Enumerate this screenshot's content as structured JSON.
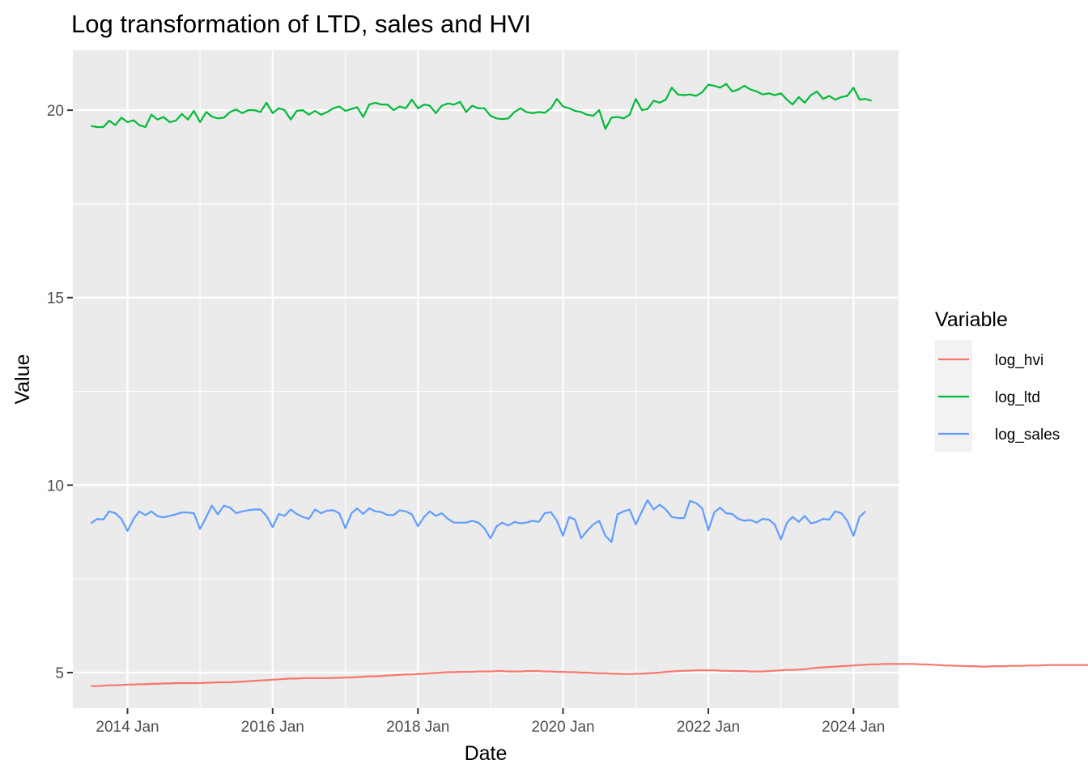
{
  "chart_data": {
    "type": "line",
    "title": "Log transformation of LTD, sales and HVI",
    "xlabel": "Date",
    "ylabel": "Value",
    "x_ticks": [
      "2014 Jan",
      "2016 Jan",
      "2018 Jan",
      "2020 Jan",
      "2022 Jan",
      "2024 Jan"
    ],
    "y_ticks": [
      5,
      10,
      15,
      20
    ],
    "xlim": [
      "2013-04-01",
      "2024-08-15"
    ],
    "ylim": [
      4.05,
      21.6
    ],
    "grid": true,
    "legend": {
      "title": "Variable",
      "position": "right"
    },
    "series": [
      {
        "name": "log_hvi",
        "color": "#F8766D",
        "start": "2013-07",
        "values": [
          4.64,
          4.64,
          4.65,
          4.66,
          4.66,
          4.67,
          4.68,
          4.68,
          4.69,
          4.69,
          4.7,
          4.7,
          4.71,
          4.71,
          4.72,
          4.72,
          4.72,
          4.72,
          4.72,
          4.73,
          4.73,
          4.74,
          4.74,
          4.74,
          4.75,
          4.76,
          4.77,
          4.78,
          4.79,
          4.8,
          4.81,
          4.82,
          4.83,
          4.84,
          4.84,
          4.85,
          4.85,
          4.85,
          4.85,
          4.85,
          4.86,
          4.86,
          4.87,
          4.87,
          4.88,
          4.89,
          4.9,
          4.9,
          4.91,
          4.92,
          4.93,
          4.94,
          4.95,
          4.95,
          4.96,
          4.97,
          4.98,
          4.99,
          5.0,
          5.01,
          5.01,
          5.02,
          5.02,
          5.02,
          5.03,
          5.03,
          5.03,
          5.04,
          5.04,
          5.03,
          5.03,
          5.03,
          5.04,
          5.04,
          5.04,
          5.03,
          5.03,
          5.02,
          5.02,
          5.01,
          5.01,
          5.0,
          5.0,
          4.99,
          4.98,
          4.98,
          4.97,
          4.97,
          4.96,
          4.96,
          4.97,
          4.97,
          4.98,
          4.99,
          5.0,
          5.02,
          5.03,
          5.04,
          5.05,
          5.05,
          5.06,
          5.06,
          5.06,
          5.06,
          5.05,
          5.05,
          5.04,
          5.04,
          5.04,
          5.03,
          5.03,
          5.03,
          5.04,
          5.05,
          5.06,
          5.07,
          5.07,
          5.08,
          5.09,
          5.11,
          5.13,
          5.14,
          5.15,
          5.16,
          5.17,
          5.18,
          5.19,
          5.2,
          5.21,
          5.22,
          5.22,
          5.23,
          5.23,
          5.23,
          5.23,
          5.23,
          5.23,
          5.22,
          5.22,
          5.21,
          5.2,
          5.19,
          5.19,
          5.18,
          5.18,
          5.17,
          5.17,
          5.16,
          5.16,
          5.17,
          5.17,
          5.17,
          5.18,
          5.18,
          5.18,
          5.19,
          5.19,
          5.19,
          5.2,
          5.2,
          5.2,
          5.2,
          5.2,
          5.2,
          5.2,
          5.2,
          5.2,
          5.2
        ]
      },
      {
        "name": "log_ltd",
        "color": "#00BA38",
        "start": "2013-07",
        "values": [
          19.58,
          19.55,
          19.55,
          19.72,
          19.6,
          19.8,
          19.68,
          19.73,
          19.6,
          19.55,
          19.88,
          19.75,
          19.82,
          19.68,
          19.72,
          19.9,
          19.75,
          19.98,
          19.68,
          19.95,
          19.83,
          19.78,
          19.8,
          19.95,
          20.02,
          19.92,
          20.0,
          20.0,
          19.95,
          20.2,
          19.92,
          20.05,
          20.0,
          19.75,
          19.98,
          20.0,
          19.88,
          19.98,
          19.88,
          19.95,
          20.05,
          20.1,
          19.98,
          20.03,
          20.08,
          19.82,
          20.15,
          20.2,
          20.15,
          20.15,
          20.0,
          20.1,
          20.05,
          20.28,
          20.05,
          20.15,
          20.12,
          19.92,
          20.12,
          20.18,
          20.15,
          20.22,
          19.95,
          20.12,
          20.05,
          20.05,
          19.85,
          19.78,
          19.76,
          19.78,
          19.95,
          20.05,
          19.95,
          19.92,
          19.95,
          19.93,
          20.05,
          20.3,
          20.1,
          20.05,
          19.98,
          19.95,
          19.88,
          19.85,
          20.0,
          19.5,
          19.8,
          19.82,
          19.78,
          19.88,
          20.3,
          20.0,
          20.03,
          20.25,
          20.2,
          20.28,
          20.6,
          20.42,
          20.4,
          20.42,
          20.38,
          20.48,
          20.68,
          20.65,
          20.6,
          20.7,
          20.5,
          20.55,
          20.65,
          20.55,
          20.5,
          20.42,
          20.45,
          20.4,
          20.45,
          20.28,
          20.15,
          20.35,
          20.2,
          20.4,
          20.5,
          20.3,
          20.38,
          20.28,
          20.35,
          20.38,
          20.6,
          20.28,
          20.3,
          20.25
        ]
      },
      {
        "name": "log_sales",
        "color": "#619CFF",
        "start": "2013-07",
        "values": [
          8.98,
          9.1,
          9.08,
          9.3,
          9.25,
          9.1,
          8.78,
          9.1,
          9.3,
          9.2,
          9.3,
          9.17,
          9.14,
          9.18,
          9.22,
          9.27,
          9.27,
          9.25,
          8.83,
          9.15,
          9.45,
          9.22,
          9.45,
          9.4,
          9.25,
          9.3,
          9.33,
          9.35,
          9.35,
          9.18,
          8.88,
          9.23,
          9.18,
          9.35,
          9.23,
          9.15,
          9.1,
          9.35,
          9.25,
          9.32,
          9.33,
          9.25,
          8.85,
          9.25,
          9.38,
          9.23,
          9.38,
          9.3,
          9.28,
          9.2,
          9.2,
          9.33,
          9.3,
          9.22,
          8.9,
          9.15,
          9.3,
          9.18,
          9.25,
          9.1,
          9.0,
          9.0,
          9.0,
          9.05,
          9.0,
          8.85,
          8.58,
          8.9,
          9.0,
          8.92,
          9.02,
          8.98,
          9.0,
          9.05,
          9.02,
          9.25,
          9.28,
          9.05,
          8.65,
          9.15,
          9.08,
          8.58,
          8.78,
          8.95,
          9.05,
          8.65,
          8.48,
          9.22,
          9.3,
          9.35,
          8.95,
          9.3,
          9.6,
          9.35,
          9.48,
          9.35,
          9.15,
          9.12,
          9.12,
          9.58,
          9.52,
          9.38,
          8.8,
          9.28,
          9.4,
          9.25,
          9.23,
          9.1,
          9.05,
          9.07,
          9.0,
          9.1,
          9.08,
          8.95,
          8.55,
          9.0,
          9.15,
          9.02,
          9.18,
          8.98,
          9.02,
          9.1,
          9.08,
          9.3,
          9.25,
          9.05,
          8.65,
          9.15,
          9.3
        ]
      }
    ]
  }
}
